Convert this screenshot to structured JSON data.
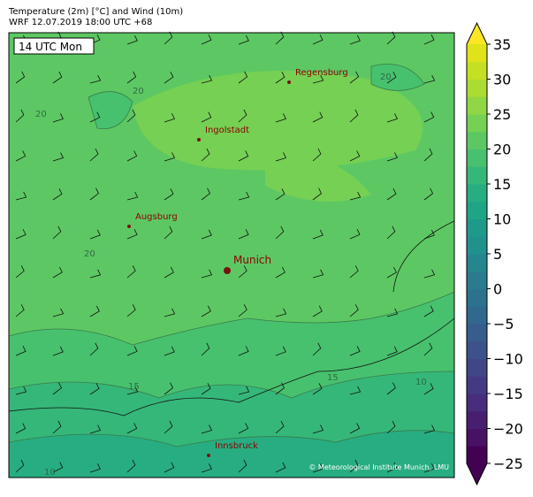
{
  "header": {
    "title": "Temperature (2m) [°C] and Wind (10m)",
    "subtitle": "WRF 12.07.2019 18:00 UTC +68"
  },
  "map": {
    "time_label": "14 UTC Mon",
    "cities": [
      "Regensburg",
      "Ingolstadt",
      "Augsburg",
      "Munich",
      "Innsbruck"
    ],
    "contour_labels": [
      "20",
      "20",
      "20",
      "20",
      "15",
      "15",
      "10",
      "10"
    ],
    "credit": "© Meteorological Institute Munich, LMU"
  },
  "colorbar": {
    "range": [
      -25,
      35
    ],
    "ticks": [
      {
        "value": -25,
        "label": "−25"
      },
      {
        "value": -20,
        "label": "−20"
      },
      {
        "value": -15,
        "label": "−15"
      },
      {
        "value": -10,
        "label": "−10"
      },
      {
        "value": -5,
        "label": "−5"
      },
      0,
      5,
      10,
      15,
      20,
      25,
      30,
      35
    ],
    "colors": [
      "#440154",
      "#471164",
      "#481f70",
      "#472d7b",
      "#443a83",
      "#404688",
      "#3b528b",
      "#365d8d",
      "#31688e",
      "#2c728e",
      "#287c8e",
      "#24868e",
      "#21918c",
      "#1f9a8a",
      "#20a486",
      "#27ad81",
      "#35b779",
      "#47c16e",
      "#5dc863",
      "#75d054",
      "#8fd744",
      "#aadc32",
      "#c5e021",
      "#dfe318"
    ],
    "under_color": "#440154",
    "over_color": "#fde725"
  }
}
